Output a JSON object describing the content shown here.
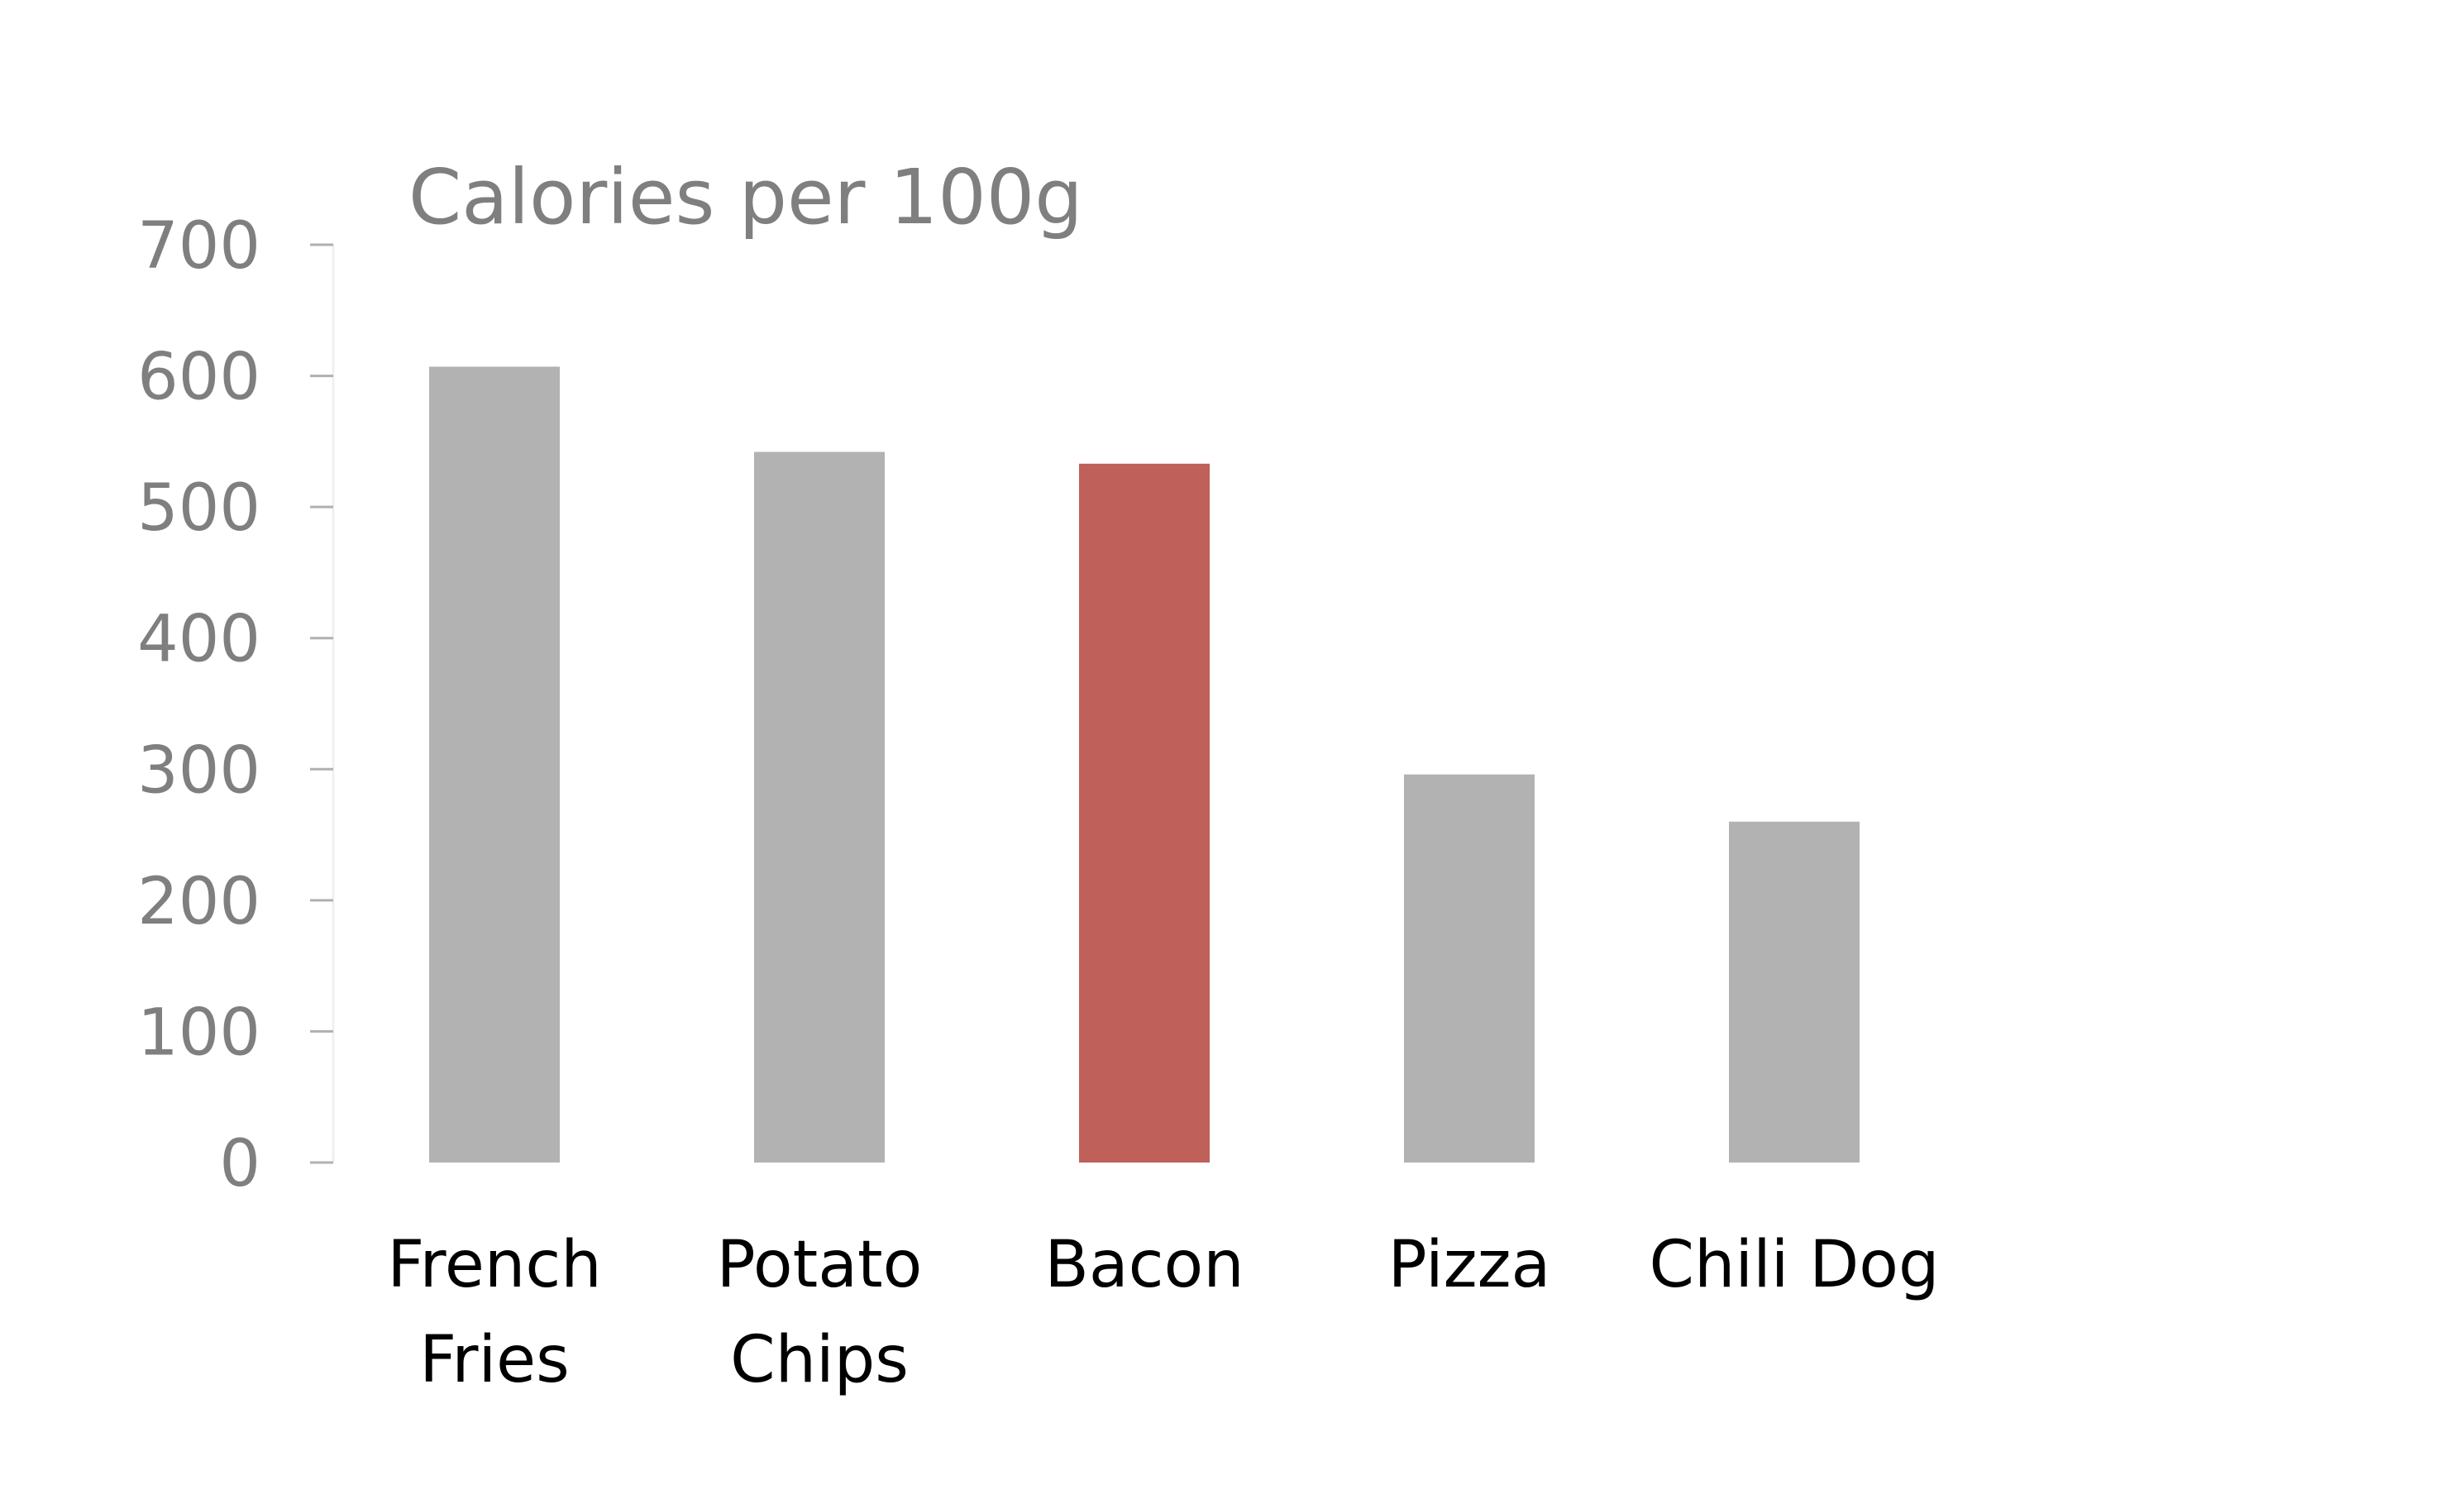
{
  "chart_data": {
    "type": "bar",
    "title": "Calories per 100g",
    "xlabel": "",
    "ylabel": "",
    "categories": [
      [
        "French",
        "Fries"
      ],
      [
        "Potato",
        "Chips"
      ],
      [
        "Bacon"
      ],
      [
        "Pizza"
      ],
      [
        "Chili Dog"
      ]
    ],
    "values": [
      607,
      542,
      533,
      296,
      260
    ],
    "ylim": [
      0,
      700
    ],
    "yticks": [
      "0",
      "100",
      "200",
      "300",
      "400",
      "500",
      "600",
      "700"
    ],
    "grid": false,
    "legend": "none",
    "colors": {
      "default_bar": "#b2b2b2",
      "highlight_bar": "#c0605a",
      "highlight_category": "Bacon"
    }
  }
}
